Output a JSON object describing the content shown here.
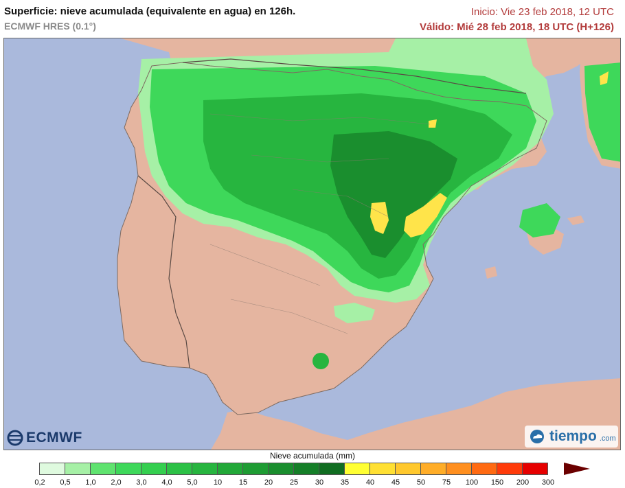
{
  "header": {
    "title": "Superficie: nieve acumulada (equivalente en agua) en 126h.",
    "model": "ECMWF HRES (0.1°)",
    "init": "Inicio: Vie 23 feb 2018, 12 UTC",
    "valid": "Válido: Mié 28 feb 2018, 18 UTC (H+126)"
  },
  "logos": {
    "ecmwf": "ECMWF",
    "tiempo": "tiempo",
    "tiempo_domain": ".com"
  },
  "legend": {
    "title": "Nieve acumulada (mm)",
    "colors": [
      "#dffadf",
      "#a6f0a6",
      "#5fe36f",
      "#3ed85a",
      "#34cf4f",
      "#2cc146",
      "#27b53f",
      "#22a838",
      "#1e9c33",
      "#1a8e2e",
      "#157f28",
      "#106d21",
      "#ffff33",
      "#ffe033",
      "#ffc82d",
      "#ffad28",
      "#ff8f1f",
      "#ff6a12",
      "#ff3b0a",
      "#e60000",
      "#b30000"
    ],
    "labels": [
      "0,2",
      "0,5",
      "1,0",
      "2,0",
      "3,0",
      "4,0",
      "5,0",
      "10",
      "15",
      "20",
      "25",
      "30",
      "35",
      "40",
      "45",
      "50",
      "75",
      "100",
      "150",
      "200",
      "300"
    ]
  },
  "map": {
    "sea_color": "#aab9dc",
    "land_color": "#e5b5a0",
    "snow_colors": [
      "#a6f0a6",
      "#3ed85a",
      "#27b53f",
      "#1a8e2e",
      "#ffe44a"
    ],
    "regions": [
      "Península Ibérica",
      "Baleares",
      "Córcega",
      "Norte de África"
    ]
  }
}
